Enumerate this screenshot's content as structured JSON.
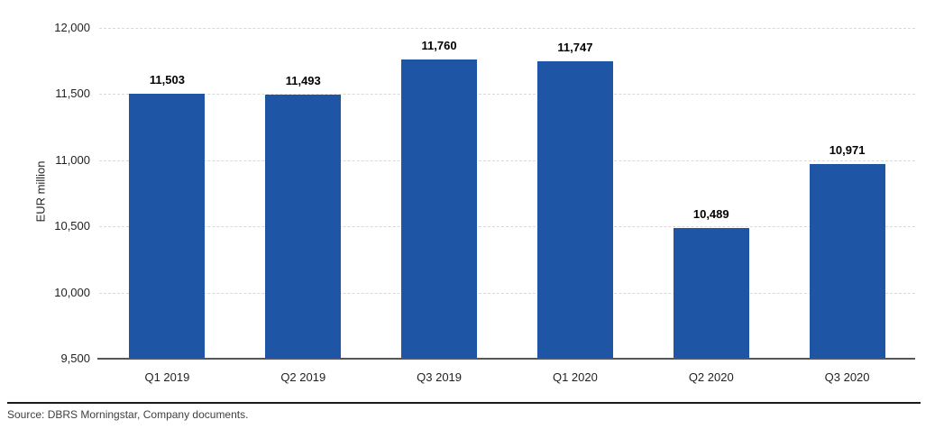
{
  "chart_data": {
    "type": "bar",
    "categories": [
      "Q1 2019",
      "Q2 2019",
      "Q3 2019",
      "Q1 2020",
      "Q2 2020",
      "Q3 2020"
    ],
    "values": [
      11503,
      11493,
      11760,
      11747,
      10489,
      10971
    ],
    "value_labels": [
      "11,503",
      "11,493",
      "11,760",
      "11,747",
      "10,489",
      "10,971"
    ],
    "title": "",
    "xlabel": "",
    "ylabel": "EUR million",
    "ylim": [
      9500,
      12000
    ],
    "ytick_step": 500,
    "yticks": [
      {
        "value": 9500,
        "label": "9,500"
      },
      {
        "value": 10000,
        "label": "10,000"
      },
      {
        "value": 10500,
        "label": "10,500"
      },
      {
        "value": 11000,
        "label": "11,000"
      },
      {
        "value": 11500,
        "label": "11,500"
      },
      {
        "value": 12000,
        "label": "12,000"
      }
    ],
    "grid": "horizontal-dashed",
    "legend": "none",
    "bar_color": "#1f55a5",
    "gridline_color": "#d9d9d9",
    "axis_line_color": "#54565a"
  },
  "footer": {
    "source_text": "Source: DBRS Morningstar, Company documents."
  }
}
